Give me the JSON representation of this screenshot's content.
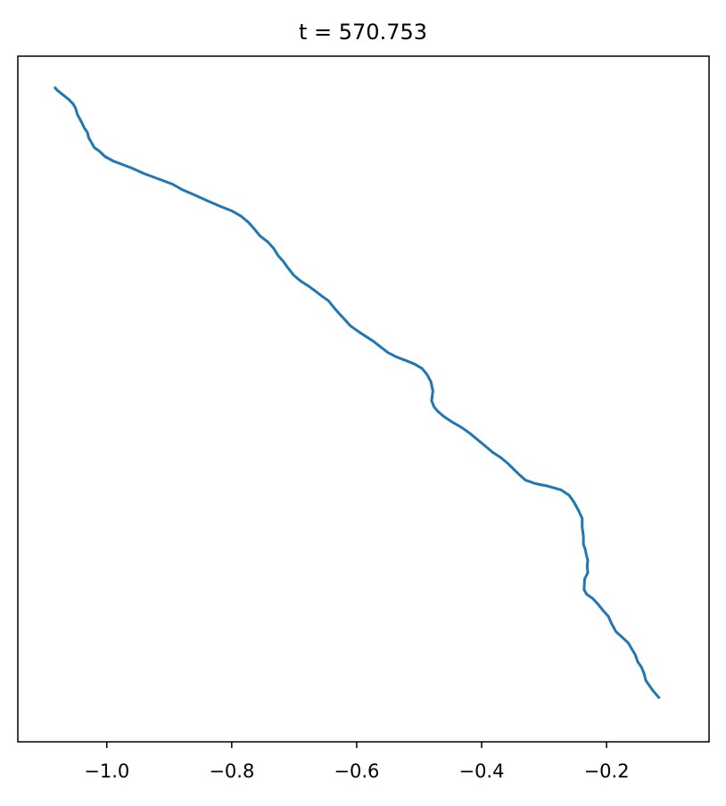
{
  "chart_data": {
    "type": "line",
    "title": "t = 570.753",
    "xlabel": "",
    "ylabel": "",
    "grid": false,
    "x_ticks": [
      -1.0,
      -0.8,
      -0.6,
      -0.4,
      -0.2
    ],
    "x_tick_labels": [
      "−1.0",
      "−0.8",
      "−0.6",
      "−0.4",
      "−0.2"
    ],
    "y_ticks_visible": false,
    "series": [
      {
        "color": "#1f77b4",
        "points": [
          [
            -1.084,
            0.9552
          ],
          [
            -1.079,
            0.95
          ],
          [
            -1.07,
            0.9435
          ],
          [
            -1.061,
            0.937
          ],
          [
            -1.054,
            0.9305
          ],
          [
            -1.05,
            0.924
          ],
          [
            -1.047,
            0.9148
          ],
          [
            -1.04,
            0.9031
          ],
          [
            -1.036,
            0.8953
          ],
          [
            -1.031,
            0.8888
          ],
          [
            -1.029,
            0.881
          ],
          [
            -1.024,
            0.8732
          ],
          [
            -1.02,
            0.8667
          ],
          [
            -1.012,
            0.8615
          ],
          [
            -1.003,
            0.8537
          ],
          [
            -0.99,
            0.8472
          ],
          [
            -0.975,
            0.842
          ],
          [
            -0.96,
            0.8368
          ],
          [
            -0.941,
            0.829
          ],
          [
            -0.918,
            0.8212
          ],
          [
            -0.895,
            0.8134
          ],
          [
            -0.88,
            0.8056
          ],
          [
            -0.86,
            0.7978
          ],
          [
            -0.838,
            0.7887
          ],
          [
            -0.818,
            0.7809
          ],
          [
            -0.8,
            0.7744
          ],
          [
            -0.785,
            0.7666
          ],
          [
            -0.773,
            0.7575
          ],
          [
            -0.763,
            0.7471
          ],
          [
            -0.755,
            0.738
          ],
          [
            -0.742,
            0.7289
          ],
          [
            -0.733,
            0.7198
          ],
          [
            -0.726,
            0.7094
          ],
          [
            -0.717,
            0.7003
          ],
          [
            -0.71,
            0.6912
          ],
          [
            -0.701,
            0.6808
          ],
          [
            -0.691,
            0.673
          ],
          [
            -0.678,
            0.6652
          ],
          [
            -0.668,
            0.6587
          ],
          [
            -0.657,
            0.6509
          ],
          [
            -0.645,
            0.6431
          ],
          [
            -0.637,
            0.634
          ],
          [
            -0.627,
            0.6236
          ],
          [
            -0.619,
            0.6158
          ],
          [
            -0.61,
            0.6067
          ],
          [
            -0.598,
            0.5989
          ],
          [
            -0.585,
            0.5911
          ],
          [
            -0.574,
            0.5846
          ],
          [
            -0.561,
            0.5755
          ],
          [
            -0.55,
            0.5677
          ],
          [
            -0.536,
            0.5612
          ],
          [
            -0.521,
            0.556
          ],
          [
            -0.507,
            0.5508
          ],
          [
            -0.495,
            0.5443
          ],
          [
            -0.487,
            0.5352
          ],
          [
            -0.481,
            0.5248
          ],
          [
            -0.478,
            0.5118
          ],
          [
            -0.48,
            0.4975
          ],
          [
            -0.476,
            0.4884
          ],
          [
            -0.47,
            0.4819
          ],
          [
            -0.46,
            0.4741
          ],
          [
            -0.447,
            0.4663
          ],
          [
            -0.432,
            0.4585
          ],
          [
            -0.418,
            0.4494
          ],
          [
            -0.406,
            0.4403
          ],
          [
            -0.394,
            0.4312
          ],
          [
            -0.382,
            0.4221
          ],
          [
            -0.369,
            0.4143
          ],
          [
            -0.357,
            0.4052
          ],
          [
            -0.347,
            0.3961
          ],
          [
            -0.338,
            0.3883
          ],
          [
            -0.33,
            0.3818
          ],
          [
            -0.314,
            0.3766
          ],
          [
            -0.293,
            0.3727
          ],
          [
            -0.273,
            0.3675
          ],
          [
            -0.26,
            0.3597
          ],
          [
            -0.252,
            0.3493
          ],
          [
            -0.245,
            0.3376
          ],
          [
            -0.239,
            0.3259
          ],
          [
            -0.239,
            0.3129
          ],
          [
            -0.237,
            0.2999
          ],
          [
            -0.237,
            0.2882
          ],
          [
            -0.234,
            0.2804
          ],
          [
            -0.232,
            0.2713
          ],
          [
            -0.23,
            0.2648
          ],
          [
            -0.231,
            0.2557
          ],
          [
            -0.23,
            0.2466
          ],
          [
            -0.235,
            0.2375
          ],
          [
            -0.236,
            0.2219
          ],
          [
            -0.232,
            0.2154
          ],
          [
            -0.222,
            0.2089
          ],
          [
            -0.214,
            0.2011
          ],
          [
            -0.206,
            0.192
          ],
          [
            -0.197,
            0.1829
          ],
          [
            -0.192,
            0.1725
          ],
          [
            -0.185,
            0.1608
          ],
          [
            -0.174,
            0.1517
          ],
          [
            -0.165,
            0.1439
          ],
          [
            -0.16,
            0.1361
          ],
          [
            -0.154,
            0.127
          ],
          [
            -0.15,
            0.1166
          ],
          [
            -0.144,
            0.1088
          ],
          [
            -0.14,
            0.0997
          ],
          [
            -0.137,
            0.0893
          ],
          [
            -0.131,
            0.0815
          ],
          [
            -0.126,
            0.075
          ],
          [
            -0.12,
            0.0685
          ],
          [
            -0.115,
            0.0633
          ]
        ]
      }
    ],
    "xlim": [
      -1.1424,
      -0.0359
    ],
    "ylim": [
      0.0,
      1.0
    ]
  }
}
